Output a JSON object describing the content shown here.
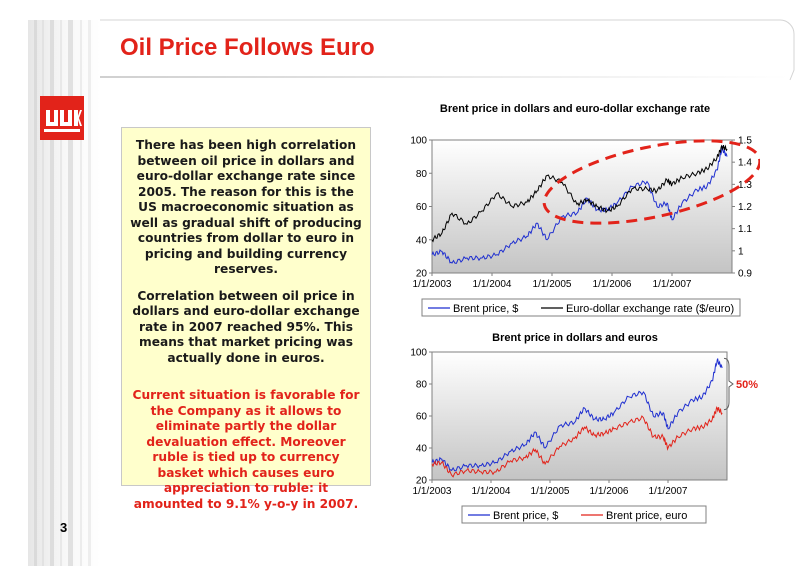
{
  "slide": {
    "title": "Oil Price Follows Euro",
    "page_number": "3",
    "logo_letters": "ЛУК",
    "paragraphs": [
      "There has been high correlation between oil price in dollars and euro-dollar exchange rate since 2005. The reason for this is the US macroeconomic situation as well as gradual shift of producing countries from dollar to euro in pricing and building currency reserves.",
      "Correlation between oil price in dollars and euro-dollar exchange rate in 2007 reached 95%. This means that market pricing was actually done in euros.",
      "Current situation is favorable for the Company as it allows to eliminate partly the dollar devaluation effect. Moreover ruble is tied up to currency basket which causes euro appreciation to ruble: it amounted to 9.1% y-o-y in 2007."
    ],
    "colors": {
      "title": "#e2231a",
      "highlight_text": "#e2231a",
      "textbox_bg": "#ffffcc",
      "series_blue": "#1f2fd0",
      "series_black": "#000000",
      "series_red": "#e2231a"
    }
  },
  "chart_data": [
    {
      "type": "line",
      "title": "Brent price in dollars and euro-dollar exchange rate",
      "x_ticks": [
        "1/1/2003",
        "1/1/2004",
        "1/1/2005",
        "1/1/2006",
        "1/1/2007"
      ],
      "y_left_ticks": [
        "20",
        "40",
        "60",
        "80",
        "100"
      ],
      "y_left_range": [
        20,
        100
      ],
      "y_right_ticks": [
        "0.9",
        "1",
        "1.1",
        "1.2",
        "1.3",
        "1.4",
        "1.5"
      ],
      "y_right_range": [
        0.9,
        1.5
      ],
      "x_range": [
        "2003-01-01",
        "2007-12-31"
      ],
      "series": [
        {
          "name": "Brent price, $",
          "axis": "left",
          "color": "#1f2fd0",
          "dates": [
            "2003-01",
            "2003-03",
            "2003-05",
            "2003-08",
            "2003-11",
            "2004-02",
            "2004-05",
            "2004-08",
            "2004-10",
            "2004-12",
            "2005-03",
            "2005-06",
            "2005-08",
            "2005-10",
            "2005-12",
            "2006-02",
            "2006-05",
            "2006-08",
            "2006-10",
            "2006-12",
            "2007-01",
            "2007-03",
            "2007-06",
            "2007-08",
            "2007-10",
            "2007-11",
            "2007-12"
          ],
          "values": [
            31,
            33,
            26,
            29,
            29,
            31,
            38,
            42,
            50,
            40,
            54,
            56,
            65,
            58,
            58,
            62,
            72,
            75,
            60,
            62,
            52,
            62,
            70,
            72,
            82,
            95,
            90
          ]
        },
        {
          "name": "Euro-dollar exchange rate ($/euro)",
          "axis": "right",
          "color": "#000000",
          "dates": [
            "2003-01",
            "2003-03",
            "2003-05",
            "2003-08",
            "2003-11",
            "2004-02",
            "2004-05",
            "2004-08",
            "2004-10",
            "2004-12",
            "2005-03",
            "2005-06",
            "2005-08",
            "2005-10",
            "2005-12",
            "2006-02",
            "2006-05",
            "2006-08",
            "2006-10",
            "2006-12",
            "2007-01",
            "2007-03",
            "2007-06",
            "2007-08",
            "2007-10",
            "2007-11",
            "2007-12"
          ],
          "values": [
            1.05,
            1.08,
            1.17,
            1.12,
            1.18,
            1.26,
            1.2,
            1.22,
            1.27,
            1.34,
            1.31,
            1.21,
            1.23,
            1.2,
            1.18,
            1.2,
            1.28,
            1.28,
            1.27,
            1.32,
            1.3,
            1.33,
            1.35,
            1.37,
            1.42,
            1.47,
            1.46
          ]
        }
      ],
      "legend": "bottom",
      "annotation": "red dashed ellipse highlighting 2005-2007"
    },
    {
      "type": "line",
      "title": "Brent price in dollars and euros",
      "x_ticks": [
        "1/1/2003",
        "1/1/2004",
        "1/1/2005",
        "1/1/2006",
        "1/1/2007"
      ],
      "y_ticks": [
        "20",
        "40",
        "60",
        "80",
        "100"
      ],
      "ylim": [
        20,
        100
      ],
      "x_range": [
        "2003-01-01",
        "2007-12-31"
      ],
      "series": [
        {
          "name": "Brent price, $",
          "color": "#1f2fd0",
          "dates": [
            "2003-01",
            "2003-03",
            "2003-05",
            "2003-08",
            "2003-11",
            "2004-02",
            "2004-05",
            "2004-08",
            "2004-10",
            "2004-12",
            "2005-03",
            "2005-06",
            "2005-08",
            "2005-10",
            "2005-12",
            "2006-02",
            "2006-05",
            "2006-08",
            "2006-10",
            "2006-12",
            "2007-01",
            "2007-03",
            "2007-06",
            "2007-08",
            "2007-10",
            "2007-11",
            "2007-12"
          ],
          "values": [
            31,
            33,
            26,
            29,
            29,
            31,
            38,
            42,
            50,
            40,
            54,
            56,
            65,
            58,
            58,
            62,
            72,
            75,
            60,
            62,
            52,
            62,
            70,
            72,
            82,
            95,
            90
          ]
        },
        {
          "name": "Brent price, euro",
          "color": "#e2231a",
          "dates": [
            "2003-01",
            "2003-03",
            "2003-05",
            "2003-08",
            "2003-11",
            "2004-02",
            "2004-05",
            "2004-08",
            "2004-10",
            "2004-12",
            "2005-03",
            "2005-06",
            "2005-08",
            "2005-10",
            "2005-12",
            "2006-02",
            "2006-05",
            "2006-08",
            "2006-10",
            "2006-12",
            "2007-01",
            "2007-03",
            "2007-06",
            "2007-08",
            "2007-10",
            "2007-11",
            "2007-12"
          ],
          "values": [
            30,
            31,
            23,
            26,
            25,
            25,
            32,
            34,
            39,
            30,
            41,
            46,
            53,
            48,
            49,
            52,
            56,
            59,
            47,
            47,
            40,
            47,
            52,
            53,
            58,
            65,
            62
          ]
        }
      ],
      "legend": "bottom",
      "annotation": "50%"
    }
  ]
}
